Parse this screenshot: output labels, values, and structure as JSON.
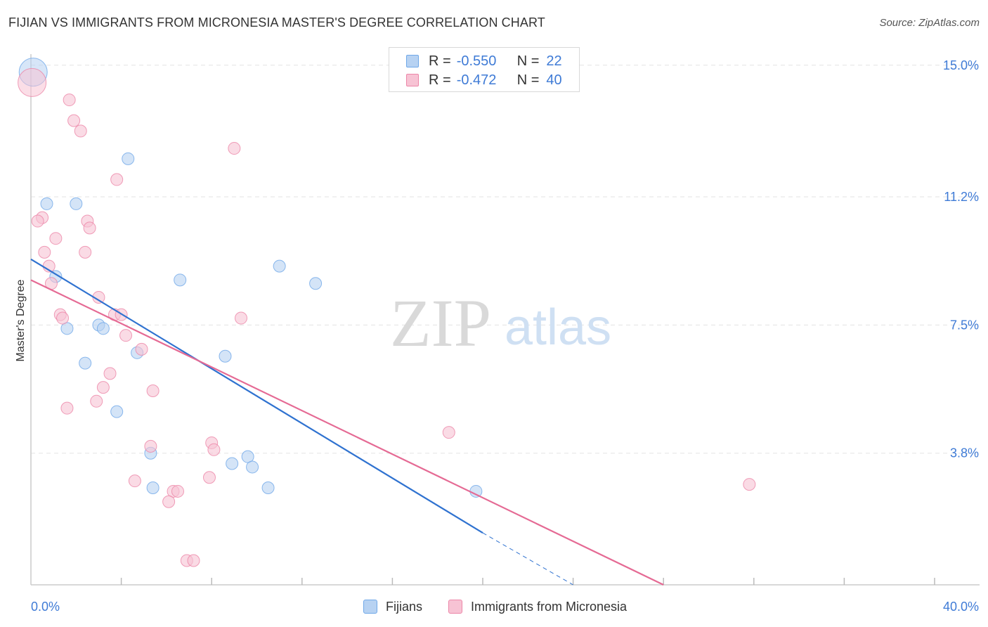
{
  "title": "FIJIAN VS IMMIGRANTS FROM MICRONESIA MASTER'S DEGREE CORRELATION CHART",
  "source": "Source: ZipAtlas.com",
  "watermark": {
    "zip": "ZIP",
    "atlas": "atlas"
  },
  "legend": [
    {
      "r_label": "R =",
      "r_value": "-0.550",
      "n_label": "N =",
      "n_value": "22",
      "color": "#6fa8e8",
      "fill": "#b7d2f2"
    },
    {
      "r_label": "R =",
      "r_value": "-0.472",
      "n_label": "N =",
      "n_value": "40",
      "color": "#ec86a8",
      "fill": "#f7c3d4"
    }
  ],
  "bottom_legend": [
    "Fijians",
    "Immigrants from Micronesia"
  ],
  "chart_data": {
    "type": "scatter",
    "xlabel": "",
    "ylabel": "Master's Degree",
    "xlim": [
      0,
      40
    ],
    "ylim": [
      0,
      15.3
    ],
    "x_tick_labels": [
      "0.0%",
      "40.0%"
    ],
    "y_ticks": [
      3.8,
      7.5,
      11.2,
      15.0
    ],
    "y_tick_labels": [
      "3.8%",
      "7.5%",
      "11.2%",
      "15.0%"
    ],
    "grid": true,
    "series": [
      {
        "name": "Fijians",
        "color": "#6fa8e8",
        "fill": "#b7d2f2",
        "points": [
          {
            "x": 0.1,
            "y": 14.8,
            "big": true
          },
          {
            "x": 0.7,
            "y": 11.0
          },
          {
            "x": 2.0,
            "y": 11.0
          },
          {
            "x": 4.3,
            "y": 12.3
          },
          {
            "x": 1.1,
            "y": 8.9
          },
          {
            "x": 1.6,
            "y": 7.4
          },
          {
            "x": 3.0,
            "y": 7.5
          },
          {
            "x": 3.2,
            "y": 7.4
          },
          {
            "x": 4.7,
            "y": 6.7
          },
          {
            "x": 2.4,
            "y": 6.4
          },
          {
            "x": 6.6,
            "y": 8.8
          },
          {
            "x": 8.6,
            "y": 6.6
          },
          {
            "x": 11.0,
            "y": 9.2
          },
          {
            "x": 12.6,
            "y": 8.7
          },
          {
            "x": 3.8,
            "y": 5.0
          },
          {
            "x": 5.3,
            "y": 3.8
          },
          {
            "x": 5.4,
            "y": 2.8
          },
          {
            "x": 8.9,
            "y": 3.5
          },
          {
            "x": 9.6,
            "y": 3.7
          },
          {
            "x": 9.8,
            "y": 3.4
          },
          {
            "x": 10.5,
            "y": 2.8
          },
          {
            "x": 19.7,
            "y": 2.7
          }
        ],
        "trend": {
          "x1": 0,
          "y1": 9.4,
          "x2": 20.0,
          "y2": 1.5,
          "dash_x2": 24.0,
          "dash_y2": 0.0
        }
      },
      {
        "name": "Immigrants from Micronesia",
        "color": "#ec86a8",
        "fill": "#f7c3d4",
        "points": [
          {
            "x": 0.05,
            "y": 14.5,
            "big": true
          },
          {
            "x": 1.7,
            "y": 14.0
          },
          {
            "x": 1.9,
            "y": 13.4
          },
          {
            "x": 2.2,
            "y": 13.1
          },
          {
            "x": 9.0,
            "y": 12.6
          },
          {
            "x": 3.8,
            "y": 11.7
          },
          {
            "x": 0.5,
            "y": 10.6
          },
          {
            "x": 0.3,
            "y": 10.5
          },
          {
            "x": 2.5,
            "y": 10.5
          },
          {
            "x": 2.6,
            "y": 10.3
          },
          {
            "x": 1.1,
            "y": 10.0
          },
          {
            "x": 0.6,
            "y": 9.6
          },
          {
            "x": 2.4,
            "y": 9.6
          },
          {
            "x": 0.8,
            "y": 9.2
          },
          {
            "x": 0.9,
            "y": 8.7
          },
          {
            "x": 3.0,
            "y": 8.3
          },
          {
            "x": 1.3,
            "y": 7.8
          },
          {
            "x": 1.4,
            "y": 7.7
          },
          {
            "x": 3.7,
            "y": 7.8
          },
          {
            "x": 4.0,
            "y": 7.8
          },
          {
            "x": 9.3,
            "y": 7.7
          },
          {
            "x": 4.2,
            "y": 7.2
          },
          {
            "x": 4.9,
            "y": 6.8
          },
          {
            "x": 3.5,
            "y": 6.1
          },
          {
            "x": 3.2,
            "y": 5.7
          },
          {
            "x": 5.4,
            "y": 5.6
          },
          {
            "x": 2.9,
            "y": 5.3
          },
          {
            "x": 1.6,
            "y": 5.1
          },
          {
            "x": 18.5,
            "y": 4.4
          },
          {
            "x": 5.3,
            "y": 4.0
          },
          {
            "x": 8.0,
            "y": 4.1
          },
          {
            "x": 8.1,
            "y": 3.9
          },
          {
            "x": 4.6,
            "y": 3.0
          },
          {
            "x": 7.9,
            "y": 3.1
          },
          {
            "x": 6.3,
            "y": 2.7
          },
          {
            "x": 6.5,
            "y": 2.7
          },
          {
            "x": 6.1,
            "y": 2.4
          },
          {
            "x": 31.8,
            "y": 2.9
          },
          {
            "x": 6.9,
            "y": 0.7
          },
          {
            "x": 7.2,
            "y": 0.7
          }
        ],
        "trend": {
          "x1": 0,
          "y1": 8.8,
          "x2": 28.0,
          "y2": 0.0
        }
      }
    ]
  }
}
